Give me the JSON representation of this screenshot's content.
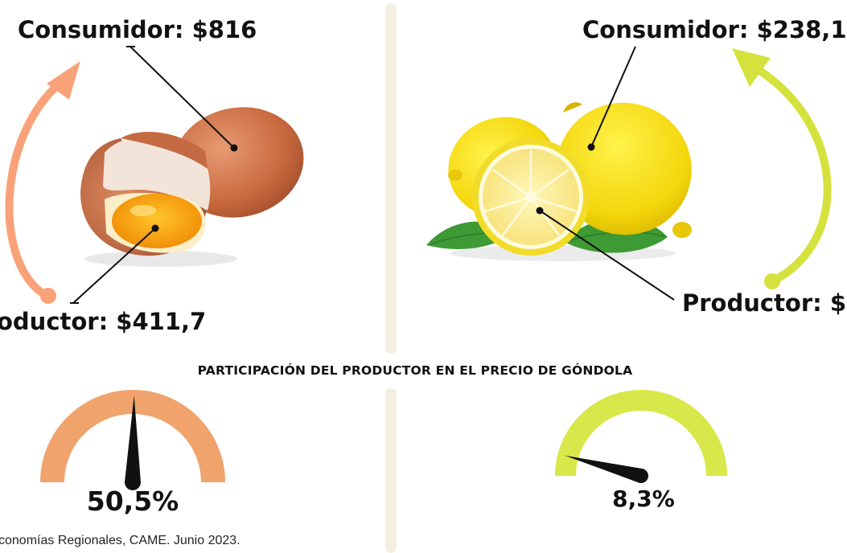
{
  "egg": {
    "consumer_label": "Consumidor: $816",
    "producer_label": "oductor: $411,7",
    "gauge_value": "50,5%",
    "gauge_fraction": 0.505,
    "arrow_color": "#f9a27a",
    "gauge_color": "#f0a36c"
  },
  "lemon": {
    "consumer_label": "Consumidor: $238,1",
    "producer_label": "Productor: $",
    "gauge_value": "8,3%",
    "gauge_fraction": 0.083,
    "arrow_color": "#d5e23e",
    "gauge_color": "#d8e84a"
  },
  "section_title": "PARTICIPACIÓN DEL PRODUCTOR EN EL PRECIO DE GÓNDOLA",
  "source": "conomías Regionales, CAME. Junio 2023.",
  "icons": [
    "egg-illustration",
    "lemon-illustration",
    "leaf-icon",
    "gauge-needle-icon",
    "arrow-up-icon"
  ]
}
